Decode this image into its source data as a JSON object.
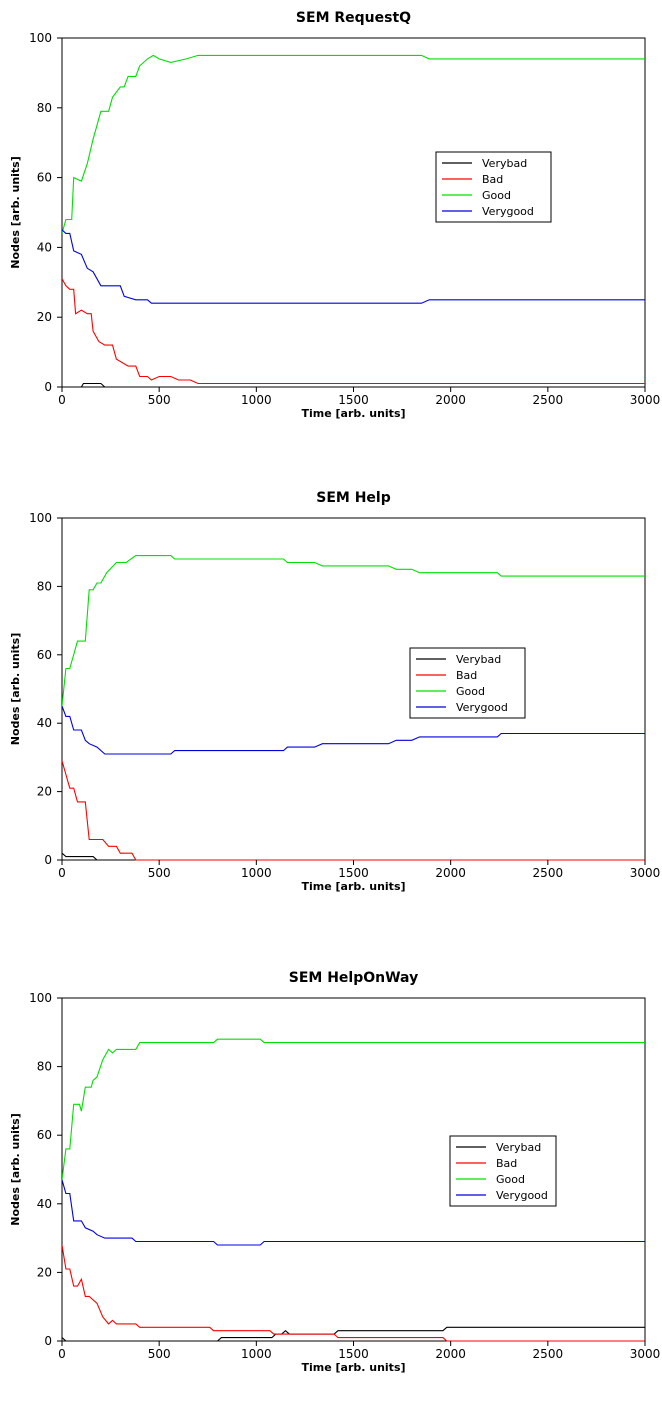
{
  "chart_data": [
    {
      "type": "line",
      "title": "SEM RequestQ",
      "xlabel": "Time [arb. units]",
      "ylabel": "Nodes [arb. units]",
      "xlim": [
        0,
        3000
      ],
      "ylim": [
        0,
        100
      ],
      "xticks": [
        "0",
        "500",
        "1000",
        "1500",
        "2000",
        "2500",
        "3000"
      ],
      "yticks": [
        "0",
        "20",
        "40",
        "60",
        "80",
        "100"
      ],
      "grid": false,
      "legend_position": "center-right",
      "series": [
        {
          "name": "Verybad",
          "color": "#000000",
          "points": [
            [
              0,
              0
            ],
            [
              100,
              0
            ],
            [
              110,
              1
            ],
            [
              200,
              1
            ],
            [
              220,
              0
            ],
            [
              3000,
              0
            ]
          ]
        },
        {
          "name": "Bad",
          "color": "#ff0000",
          "points": [
            [
              0,
              31
            ],
            [
              20,
              29
            ],
            [
              40,
              28
            ],
            [
              60,
              28
            ],
            [
              70,
              21
            ],
            [
              100,
              22
            ],
            [
              130,
              21
            ],
            [
              150,
              21
            ],
            [
              160,
              16
            ],
            [
              190,
              13
            ],
            [
              220,
              12
            ],
            [
              260,
              12
            ],
            [
              280,
              8
            ],
            [
              340,
              6
            ],
            [
              380,
              6
            ],
            [
              400,
              3
            ],
            [
              440,
              3
            ],
            [
              460,
              2
            ],
            [
              500,
              3
            ],
            [
              560,
              3
            ],
            [
              600,
              2
            ],
            [
              660,
              2
            ],
            [
              700,
              1
            ],
            [
              3000,
              1
            ]
          ]
        },
        {
          "name": "Good",
          "color": "#00e000",
          "points": [
            [
              0,
              44
            ],
            [
              20,
              48
            ],
            [
              50,
              48
            ],
            [
              60,
              60
            ],
            [
              100,
              59
            ],
            [
              130,
              64
            ],
            [
              160,
              71
            ],
            [
              200,
              79
            ],
            [
              240,
              79
            ],
            [
              260,
              83
            ],
            [
              300,
              86
            ],
            [
              320,
              86
            ],
            [
              340,
              89
            ],
            [
              380,
              89
            ],
            [
              400,
              92
            ],
            [
              440,
              94
            ],
            [
              470,
              95
            ],
            [
              500,
              94
            ],
            [
              560,
              93
            ],
            [
              640,
              94
            ],
            [
              700,
              95
            ],
            [
              1850,
              95
            ],
            [
              1890,
              94
            ],
            [
              3000,
              94
            ]
          ]
        },
        {
          "name": "Verygood",
          "color": "#0000e0",
          "points": [
            [
              0,
              45
            ],
            [
              20,
              44
            ],
            [
              40,
              44
            ],
            [
              60,
              39
            ],
            [
              100,
              38
            ],
            [
              130,
              34
            ],
            [
              160,
              33
            ],
            [
              200,
              29
            ],
            [
              300,
              29
            ],
            [
              320,
              26
            ],
            [
              380,
              25
            ],
            [
              440,
              25
            ],
            [
              460,
              24
            ],
            [
              1850,
              24
            ],
            [
              1890,
              25
            ],
            [
              3000,
              25
            ]
          ]
        }
      ]
    },
    {
      "type": "line",
      "title": "SEM Help",
      "xlabel": "Time [arb. units]",
      "ylabel": "Nodes [arb. units]",
      "xlim": [
        0,
        3000
      ],
      "ylim": [
        0,
        100
      ],
      "xticks": [
        "0",
        "500",
        "1000",
        "1500",
        "2000",
        "2500",
        "3000"
      ],
      "yticks": [
        "0",
        "20",
        "40",
        "60",
        "80",
        "100"
      ],
      "grid": false,
      "legend_position": "center-right",
      "series": [
        {
          "name": "Verybad",
          "color": "#000000",
          "points": [
            [
              0,
              2
            ],
            [
              20,
              1
            ],
            [
              160,
              1
            ],
            [
              180,
              0
            ],
            [
              3000,
              0
            ]
          ]
        },
        {
          "name": "Bad",
          "color": "#ff0000",
          "points": [
            [
              0,
              29
            ],
            [
              20,
              25
            ],
            [
              40,
              21
            ],
            [
              60,
              21
            ],
            [
              80,
              17
            ],
            [
              120,
              17
            ],
            [
              140,
              6
            ],
            [
              210,
              6
            ],
            [
              240,
              4
            ],
            [
              280,
              4
            ],
            [
              300,
              2
            ],
            [
              360,
              2
            ],
            [
              380,
              0
            ],
            [
              3000,
              0
            ]
          ]
        },
        {
          "name": "Good",
          "color": "#00e000",
          "points": [
            [
              0,
              45
            ],
            [
              20,
              56
            ],
            [
              40,
              56
            ],
            [
              80,
              64
            ],
            [
              120,
              64
            ],
            [
              140,
              79
            ],
            [
              160,
              79
            ],
            [
              180,
              81
            ],
            [
              200,
              81
            ],
            [
              230,
              84
            ],
            [
              280,
              87
            ],
            [
              330,
              87
            ],
            [
              380,
              89
            ],
            [
              560,
              89
            ],
            [
              580,
              88
            ],
            [
              1140,
              88
            ],
            [
              1160,
              87
            ],
            [
              1300,
              87
            ],
            [
              1340,
              86
            ],
            [
              1680,
              86
            ],
            [
              1720,
              85
            ],
            [
              1800,
              85
            ],
            [
              1840,
              84
            ],
            [
              2240,
              84
            ],
            [
              2260,
              83
            ],
            [
              3000,
              83
            ]
          ]
        },
        {
          "name": "Verygood",
          "color": "#0000e0",
          "points": [
            [
              0,
              45
            ],
            [
              20,
              42
            ],
            [
              40,
              42
            ],
            [
              60,
              38
            ],
            [
              100,
              38
            ],
            [
              120,
              35
            ],
            [
              140,
              34
            ],
            [
              180,
              33
            ],
            [
              220,
              31
            ],
            [
              560,
              31
            ],
            [
              580,
              32
            ],
            [
              1140,
              32
            ],
            [
              1160,
              33
            ],
            [
              1300,
              33
            ],
            [
              1340,
              34
            ],
            [
              1680,
              34
            ],
            [
              1720,
              35
            ],
            [
              1800,
              35
            ],
            [
              1840,
              36
            ],
            [
              2240,
              36
            ],
            [
              2260,
              37
            ],
            [
              3000,
              37
            ]
          ]
        }
      ]
    },
    {
      "type": "line",
      "title": "SEM HelpOnWay",
      "xlabel": "Time [arb. units]",
      "ylabel": "Nodes [arb. units]",
      "xlim": [
        0,
        3000
      ],
      "ylim": [
        0,
        100
      ],
      "xticks": [
        "0",
        "500",
        "1000",
        "1500",
        "2000",
        "2500",
        "3000"
      ],
      "yticks": [
        "0",
        "20",
        "40",
        "60",
        "80",
        "100"
      ],
      "grid": false,
      "legend_position": "center-right",
      "series": [
        {
          "name": "Verybad",
          "color": "#000000",
          "points": [
            [
              0,
              1
            ],
            [
              20,
              0
            ],
            [
              800,
              0
            ],
            [
              820,
              1
            ],
            [
              1080,
              1
            ],
            [
              1100,
              2
            ],
            [
              1130,
              2
            ],
            [
              1150,
              3
            ],
            [
              1170,
              2
            ],
            [
              1400,
              2
            ],
            [
              1420,
              3
            ],
            [
              1960,
              3
            ],
            [
              1980,
              4
            ],
            [
              3000,
              4
            ]
          ]
        },
        {
          "name": "Bad",
          "color": "#ff0000",
          "points": [
            [
              0,
              28
            ],
            [
              20,
              21
            ],
            [
              40,
              21
            ],
            [
              60,
              16
            ],
            [
              80,
              16
            ],
            [
              100,
              18
            ],
            [
              120,
              13
            ],
            [
              140,
              13
            ],
            [
              180,
              11
            ],
            [
              210,
              7
            ],
            [
              240,
              5
            ],
            [
              260,
              6
            ],
            [
              280,
              5
            ],
            [
              380,
              5
            ],
            [
              400,
              4
            ],
            [
              760,
              4
            ],
            [
              780,
              3
            ],
            [
              1070,
              3
            ],
            [
              1090,
              2
            ],
            [
              1400,
              2
            ],
            [
              1420,
              1
            ],
            [
              1960,
              1
            ],
            [
              1980,
              0
            ],
            [
              3000,
              0
            ]
          ]
        },
        {
          "name": "Good",
          "color": "#00e000",
          "points": [
            [
              0,
              47
            ],
            [
              20,
              56
            ],
            [
              40,
              56
            ],
            [
              60,
              69
            ],
            [
              90,
              69
            ],
            [
              100,
              67
            ],
            [
              120,
              74
            ],
            [
              150,
              74
            ],
            [
              160,
              76
            ],
            [
              180,
              77
            ],
            [
              210,
              82
            ],
            [
              240,
              85
            ],
            [
              260,
              84
            ],
            [
              280,
              85
            ],
            [
              380,
              85
            ],
            [
              400,
              87
            ],
            [
              780,
              87
            ],
            [
              800,
              88
            ],
            [
              1020,
              88
            ],
            [
              1040,
              87
            ],
            [
              3000,
              87
            ]
          ]
        },
        {
          "name": "Verygood",
          "color": "#0000e0",
          "points": [
            [
              0,
              47
            ],
            [
              20,
              43
            ],
            [
              40,
              43
            ],
            [
              60,
              35
            ],
            [
              100,
              35
            ],
            [
              120,
              33
            ],
            [
              160,
              32
            ],
            [
              180,
              31
            ],
            [
              220,
              30
            ],
            [
              360,
              30
            ],
            [
              380,
              29
            ],
            [
              780,
              29
            ],
            [
              800,
              28
            ],
            [
              1020,
              28
            ],
            [
              1040,
              29
            ],
            [
              3000,
              29
            ]
          ]
        }
      ]
    }
  ]
}
